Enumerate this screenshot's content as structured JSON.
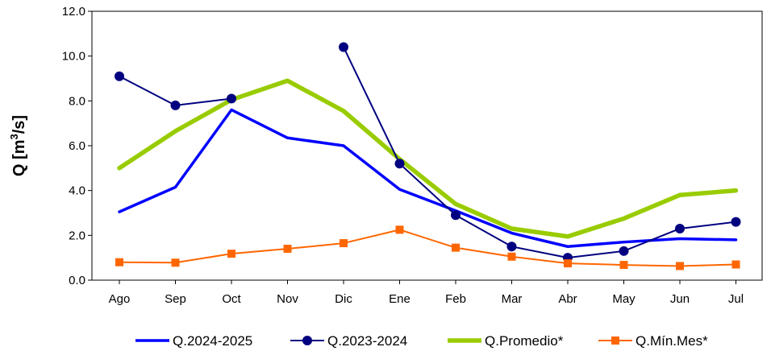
{
  "chart_data": {
    "type": "line",
    "title": "",
    "xlabel": "",
    "ylabel": "Q [m³/s]",
    "ylabel_parts": {
      "pre": "Q [m",
      "sup": "3",
      "post": "/s]"
    },
    "ylim": [
      0,
      12
    ],
    "yticks": [
      "0.0",
      "2.0",
      "4.0",
      "6.0",
      "8.0",
      "10.0",
      "12.0"
    ],
    "categories": [
      "Ago",
      "Sep",
      "Oct",
      "Nov",
      "Dic",
      "Ene",
      "Feb",
      "Mar",
      "Abr",
      "May",
      "Jun",
      "Jul"
    ],
    "grid": false,
    "legend_position": "bottom",
    "series": [
      {
        "name": "Q.2024-2025",
        "color": "#0000ff",
        "marker": "none",
        "values": [
          3.05,
          4.15,
          7.6,
          6.35,
          6.0,
          4.05,
          3.1,
          2.1,
          1.5,
          1.7,
          1.85,
          1.8
        ]
      },
      {
        "name": "Q.2023-2024",
        "color": "#000080",
        "marker": "circle",
        "segments": [
          [
            [
              0,
              9.1
            ],
            [
              1,
              7.8
            ],
            [
              2,
              8.1
            ]
          ],
          [
            [
              4,
              10.4
            ],
            [
              5,
              5.2
            ],
            [
              6,
              2.9
            ],
            [
              7,
              1.5
            ],
            [
              8,
              1.0
            ],
            [
              9,
              1.3
            ],
            [
              10,
              2.3
            ],
            [
              11,
              2.6
            ]
          ]
        ]
      },
      {
        "name": "Q.Promedio*",
        "color": "#99cc00",
        "marker": "none",
        "values": [
          5.0,
          6.65,
          8.05,
          8.9,
          7.55,
          5.4,
          3.4,
          2.3,
          1.95,
          2.75,
          3.8,
          4.0
        ]
      },
      {
        "name": "Q.Mín.Mes*",
        "color": "#ff6600",
        "marker": "square",
        "values": [
          0.8,
          0.78,
          1.18,
          1.4,
          1.65,
          2.25,
          1.45,
          1.05,
          0.75,
          0.68,
          0.63,
          0.7
        ]
      }
    ]
  }
}
